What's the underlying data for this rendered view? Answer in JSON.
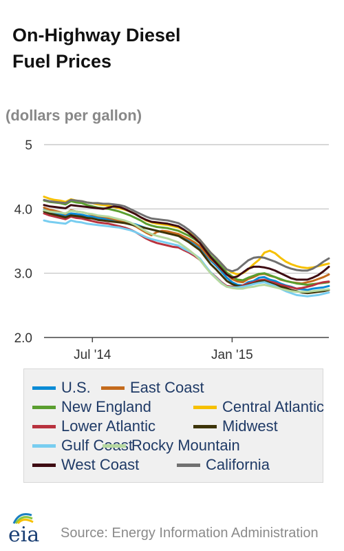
{
  "title_lines": [
    "On-Highway Diesel",
    "Fuel Prices"
  ],
  "unit": "(dollars per gallon)",
  "source": "Source: Energy Information Administration",
  "logo_text": "eia",
  "chart_data": {
    "type": "line",
    "title": "On-Highway Diesel Fuel Prices",
    "ylabel": "(dollars per gallon)",
    "ylim": [
      2.0,
      5.0
    ],
    "yticks": [
      2.0,
      3.0,
      4.0,
      5.0
    ],
    "ytick_labels": [
      "2.0",
      "3.0",
      "4.0",
      "5"
    ],
    "xtick_labels": [
      "Jul '14",
      "Jan '15"
    ],
    "xtick_positions": [
      9,
      35
    ],
    "x_start": 0,
    "x_end": 53,
    "grid": "horizontal",
    "legend_position": "bottom",
    "series": [
      {
        "name": "U.S.",
        "color": "#0a8bd6",
        "values": [
          3.99,
          3.96,
          3.94,
          3.92,
          3.9,
          3.93,
          3.92,
          3.91,
          3.89,
          3.88,
          3.86,
          3.85,
          3.84,
          3.82,
          3.81,
          3.8,
          3.78,
          3.76,
          3.73,
          3.7,
          3.68,
          3.66,
          3.64,
          3.63,
          3.61,
          3.6,
          3.55,
          3.51,
          3.46,
          3.4,
          3.3,
          3.2,
          3.12,
          3.03,
          2.93,
          2.86,
          2.82,
          2.81,
          2.86,
          2.88,
          2.93,
          2.94,
          2.9,
          2.88,
          2.84,
          2.81,
          2.79,
          2.76,
          2.75,
          2.74,
          2.76,
          2.77,
          2.78,
          2.8
        ]
      },
      {
        "name": "East Coast",
        "color": "#c46a1c",
        "values": [
          4.02,
          3.99,
          3.97,
          3.95,
          3.92,
          3.98,
          3.96,
          3.95,
          3.93,
          3.91,
          3.89,
          3.88,
          3.86,
          3.84,
          3.82,
          3.8,
          3.77,
          3.73,
          3.68,
          3.63,
          3.59,
          3.64,
          3.66,
          3.65,
          3.63,
          3.61,
          3.57,
          3.53,
          3.48,
          3.42,
          3.32,
          3.22,
          3.15,
          3.06,
          2.98,
          2.91,
          2.87,
          2.86,
          2.91,
          2.94,
          2.98,
          2.99,
          2.96,
          2.94,
          2.9,
          2.88,
          2.86,
          2.85,
          2.84,
          2.86,
          2.88,
          2.91,
          2.94,
          2.98
        ]
      },
      {
        "name": "New England",
        "color": "#5a9e2f",
        "values": [
          4.13,
          4.11,
          4.1,
          4.09,
          4.07,
          4.12,
          4.1,
          4.09,
          4.06,
          4.04,
          4.02,
          4.01,
          4.0,
          3.98,
          3.96,
          3.93,
          3.9,
          3.86,
          3.82,
          3.77,
          3.74,
          3.72,
          3.71,
          3.7,
          3.68,
          3.66,
          3.62,
          3.58,
          3.53,
          3.47,
          3.37,
          3.27,
          3.19,
          3.1,
          3.01,
          2.95,
          2.9,
          2.89,
          2.93,
          2.96,
          2.99,
          3.0,
          2.97,
          2.94,
          2.91,
          2.88,
          2.86,
          2.84,
          2.83,
          2.82,
          2.83,
          2.84,
          2.85,
          2.86
        ]
      },
      {
        "name": "Central Atlantic",
        "color": "#f6c000",
        "values": [
          4.19,
          4.16,
          4.14,
          4.13,
          4.11,
          4.15,
          4.13,
          4.12,
          4.1,
          4.09,
          4.07,
          4.06,
          4.05,
          4.03,
          4.01,
          3.99,
          3.96,
          3.92,
          3.87,
          3.82,
          3.79,
          3.77,
          3.76,
          3.75,
          3.73,
          3.71,
          3.67,
          3.63,
          3.58,
          3.52,
          3.42,
          3.32,
          3.24,
          3.15,
          3.06,
          3.01,
          2.98,
          3.0,
          3.06,
          3.14,
          3.21,
          3.32,
          3.35,
          3.31,
          3.24,
          3.18,
          3.14,
          3.11,
          3.09,
          3.08,
          3.09,
          3.11,
          3.13,
          3.15
        ]
      },
      {
        "name": "Lower Atlantic",
        "color": "#b8323e",
        "values": [
          3.93,
          3.9,
          3.88,
          3.86,
          3.84,
          3.88,
          3.86,
          3.85,
          3.83,
          3.81,
          3.79,
          3.78,
          3.77,
          3.75,
          3.73,
          3.71,
          3.68,
          3.64,
          3.59,
          3.54,
          3.5,
          3.47,
          3.45,
          3.43,
          3.41,
          3.4,
          3.36,
          3.32,
          3.27,
          3.21,
          3.11,
          3.01,
          2.94,
          2.86,
          2.8,
          2.79,
          2.79,
          2.81,
          2.84,
          2.86,
          2.89,
          2.9,
          2.87,
          2.85,
          2.82,
          2.8,
          2.78,
          2.76,
          2.77,
          2.79,
          2.81,
          2.84,
          2.86,
          2.87
        ]
      },
      {
        "name": "Midwest",
        "color": "#3d3408",
        "values": [
          3.96,
          3.93,
          3.91,
          3.89,
          3.87,
          3.9,
          3.89,
          3.88,
          3.86,
          3.85,
          3.83,
          3.82,
          3.81,
          3.8,
          3.79,
          3.78,
          3.76,
          3.74,
          3.72,
          3.7,
          3.68,
          3.66,
          3.64,
          3.62,
          3.6,
          3.58,
          3.53,
          3.48,
          3.42,
          3.36,
          3.25,
          3.14,
          3.06,
          2.97,
          2.88,
          2.83,
          2.8,
          2.79,
          2.82,
          2.84,
          2.87,
          2.88,
          2.85,
          2.82,
          2.79,
          2.77,
          2.74,
          2.72,
          2.7,
          2.69,
          2.7,
          2.71,
          2.72,
          2.74
        ]
      },
      {
        "name": "Gulf Coast",
        "color": "#78cdf0",
        "values": [
          3.82,
          3.8,
          3.79,
          3.78,
          3.77,
          3.82,
          3.8,
          3.79,
          3.77,
          3.76,
          3.75,
          3.74,
          3.73,
          3.72,
          3.71,
          3.69,
          3.67,
          3.64,
          3.6,
          3.56,
          3.53,
          3.51,
          3.49,
          3.47,
          3.45,
          3.43,
          3.38,
          3.34,
          3.29,
          3.23,
          3.12,
          3.01,
          2.93,
          2.85,
          2.79,
          2.78,
          2.78,
          2.79,
          2.81,
          2.83,
          2.85,
          2.86,
          2.83,
          2.8,
          2.76,
          2.72,
          2.69,
          2.66,
          2.65,
          2.64,
          2.65,
          2.66,
          2.68,
          2.7
        ]
      },
      {
        "name": "Rocky Mountain",
        "color": "#b5d89f",
        "values": [
          3.98,
          3.96,
          3.95,
          3.94,
          3.93,
          3.97,
          3.96,
          3.95,
          3.93,
          3.92,
          3.9,
          3.89,
          3.88,
          3.86,
          3.84,
          3.82,
          3.79,
          3.75,
          3.7,
          3.65,
          3.61,
          3.58,
          3.56,
          3.54,
          3.51,
          3.48,
          3.42,
          3.36,
          3.29,
          3.21,
          3.1,
          3.0,
          2.92,
          2.84,
          2.79,
          2.77,
          2.76,
          2.76,
          2.78,
          2.79,
          2.81,
          2.82,
          2.8,
          2.78,
          2.76,
          2.74,
          2.72,
          2.71,
          2.71,
          2.71,
          2.72,
          2.73,
          2.74,
          2.75
        ]
      },
      {
        "name": "West Coast",
        "color": "#3e0b12",
        "values": [
          4.06,
          4.04,
          4.03,
          4.02,
          4.01,
          4.06,
          4.05,
          4.04,
          4.03,
          4.02,
          4.01,
          4.0,
          4.02,
          4.04,
          4.03,
          4.0,
          3.96,
          3.92,
          3.87,
          3.83,
          3.8,
          3.79,
          3.78,
          3.77,
          3.75,
          3.73,
          3.68,
          3.62,
          3.55,
          3.47,
          3.36,
          3.25,
          3.16,
          3.07,
          2.98,
          2.93,
          2.95,
          3.01,
          3.07,
          3.1,
          3.1,
          3.09,
          3.07,
          3.04,
          3.0,
          2.96,
          2.92,
          2.9,
          2.9,
          2.9,
          2.93,
          2.97,
          3.03,
          3.1
        ]
      },
      {
        "name": "California",
        "color": "#707070",
        "values": [
          4.14,
          4.12,
          4.11,
          4.1,
          4.09,
          4.14,
          4.13,
          4.12,
          4.1,
          4.09,
          4.09,
          4.08,
          4.08,
          4.07,
          4.06,
          4.04,
          4.0,
          3.96,
          3.92,
          3.88,
          3.85,
          3.84,
          3.83,
          3.82,
          3.8,
          3.78,
          3.73,
          3.67,
          3.6,
          3.52,
          3.42,
          3.32,
          3.24,
          3.15,
          3.06,
          3.03,
          3.06,
          3.13,
          3.2,
          3.24,
          3.25,
          3.24,
          3.21,
          3.18,
          3.14,
          3.1,
          3.07,
          3.05,
          3.04,
          3.04,
          3.07,
          3.12,
          3.18,
          3.23
        ]
      }
    ]
  }
}
